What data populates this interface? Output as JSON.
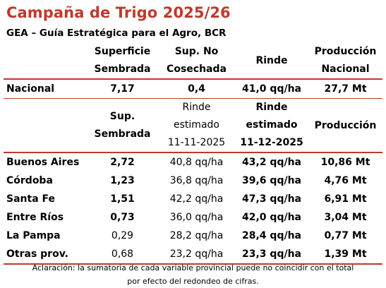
{
  "title": "Campaña de Trigo 2025/26",
  "subtitle": "GEA – Guía Estratégica para el Agro, BCR",
  "national_header": {
    "col1": [
      "Superficie",
      "Sembrada"
    ],
    "col2": [
      "Sup. No",
      "Cosechada"
    ],
    "col3": "Rinde",
    "col4": [
      "Producción",
      "Nacional"
    ]
  },
  "national_row": {
    "label": "Nacional",
    "superficie": "7,17",
    "no_cosechada": "0,4",
    "rinde": "41,0 qq/ha",
    "produccion": "27,7 Mt"
  },
  "province_header": {
    "col1": [
      "Sup.",
      "Sembrada"
    ],
    "col2": [
      "Rinde",
      "estimado",
      "11-11-2025"
    ],
    "col3": [
      "Rinde",
      "estimado",
      "11-12-2025"
    ],
    "col4": "Producción"
  },
  "provinces": [
    {
      "name": "Buenos Aires",
      "sup": "2,72",
      "rinde_nov": "40,8 qq/ha",
      "rinde_dic": "43,2 qq/ha",
      "prod": "10,86 Mt"
    },
    {
      "name": "Córdoba",
      "sup": "1,23",
      "rinde_nov": "36,8 qq/ha",
      "rinde_dic": "39,6 qq/ha",
      "prod": "4,76 Mt"
    },
    {
      "name": "Santa Fe",
      "sup": "1,51",
      "rinde_nov": "42,2 qq/ha",
      "rinde_dic": "47,3 qq/ha",
      "prod": "6,91 Mt"
    },
    {
      "name": "Entre Ríos",
      "sup": "0,73",
      "rinde_nov": "36,0 qq/ha",
      "rinde_dic": "42,0 qq/ha",
      "prod": "3,04 Mt"
    },
    {
      "name": "La Pampa",
      "sup": "0,29",
      "rinde_nov": "28,2 qq/ha",
      "rinde_dic": "28,4 qq/ha",
      "prod": "0,77 Mt"
    },
    {
      "name": "Otras prov.",
      "sup": "0,68",
      "rinde_nov": "23,2 qq/ha",
      "rinde_dic": "23,3 qq/ha",
      "prod": "1,39 Mt"
    }
  ],
  "note": [
    "Aclaración: la sumatoria de cada variable provincial puede no coincidir con el total",
    "por efecto del redondeo de cifras."
  ],
  "colors": {
    "accent": "#c0392b",
    "text": "#000000",
    "background": "#ffffff"
  }
}
